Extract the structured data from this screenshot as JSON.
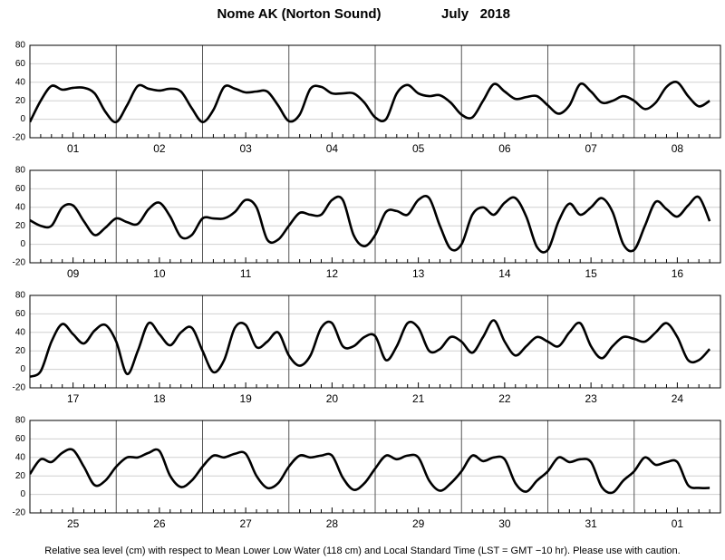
{
  "header": {
    "title": "Nome AK (Norton Sound)",
    "date": "July   2018"
  },
  "footer": "Relative sea level (cm) with respect to Mean Lower Low Water (118 cm) and Local Standard Time (LST = GMT −10 hr). Please use with caution.",
  "chart_data": [
    {
      "type": "line",
      "color": "#000000",
      "ylim": [
        -20,
        80
      ],
      "yticks": [
        -20,
        0,
        20,
        40,
        60,
        80
      ],
      "grid": true,
      "categories": [
        "01",
        "02",
        "03",
        "04",
        "05",
        "06",
        "07",
        "08"
      ],
      "values": [
        [
          -3,
          20,
          36,
          32,
          34,
          34,
          28,
          8
        ],
        [
          -3,
          15,
          36,
          33,
          31,
          33,
          30,
          12
        ],
        [
          -3,
          10,
          35,
          33,
          29,
          30,
          30,
          15
        ],
        [
          -2,
          5,
          33,
          35,
          28,
          28,
          28,
          18
        ],
        [
          2,
          0,
          28,
          37,
          28,
          25,
          26,
          18
        ],
        [
          5,
          2,
          20,
          38,
          30,
          22,
          24,
          25
        ],
        [
          15,
          6,
          15,
          38,
          30,
          18,
          20,
          25
        ],
        [
          20,
          11,
          18,
          35,
          40,
          25,
          14,
          20
        ]
      ]
    },
    {
      "type": "line",
      "color": "#000000",
      "ylim": [
        -20,
        80
      ],
      "yticks": [
        -20,
        0,
        20,
        40,
        60,
        80
      ],
      "grid": true,
      "categories": [
        "09",
        "10",
        "11",
        "12",
        "13",
        "14",
        "15",
        "16"
      ],
      "values": [
        [
          26,
          20,
          20,
          40,
          42,
          25,
          10,
          18
        ],
        [
          28,
          24,
          22,
          38,
          45,
          30,
          8,
          10
        ],
        [
          28,
          28,
          28,
          35,
          48,
          40,
          5,
          5
        ],
        [
          20,
          34,
          32,
          32,
          48,
          48,
          10,
          -2
        ],
        [
          10,
          35,
          36,
          32,
          48,
          50,
          20,
          -5
        ],
        [
          0,
          32,
          40,
          32,
          45,
          50,
          30,
          -3
        ],
        [
          -6,
          25,
          44,
          32,
          40,
          50,
          35,
          0
        ],
        [
          -6,
          20,
          46,
          38,
          30,
          42,
          51,
          25
        ]
      ]
    },
    {
      "type": "line",
      "color": "#000000",
      "ylim": [
        -20,
        80
      ],
      "yticks": [
        -20,
        0,
        20,
        40,
        60,
        80
      ],
      "grid": true,
      "categories": [
        "17",
        "18",
        "19",
        "20",
        "21",
        "22",
        "23",
        "24"
      ],
      "values": [
        [
          -8,
          -2,
          30,
          49,
          38,
          28,
          42,
          48
        ],
        [
          30,
          -5,
          20,
          50,
          38,
          26,
          40,
          45
        ],
        [
          20,
          -3,
          10,
          45,
          48,
          24,
          30,
          40
        ],
        [
          15,
          4,
          15,
          45,
          50,
          25,
          25,
          35
        ],
        [
          36,
          10,
          25,
          50,
          45,
          20,
          22,
          35
        ],
        [
          30,
          18,
          35,
          53,
          30,
          15,
          25,
          35
        ],
        [
          30,
          25,
          40,
          50,
          25,
          12,
          25,
          35
        ],
        [
          33,
          30,
          40,
          50,
          35,
          10,
          10,
          22
        ]
      ]
    },
    {
      "type": "line",
      "color": "#000000",
      "ylim": [
        -20,
        80
      ],
      "yticks": [
        -20,
        0,
        20,
        40,
        60,
        80
      ],
      "grid": true,
      "categories": [
        "25",
        "26",
        "27",
        "28",
        "29",
        "30",
        "31",
        "01"
      ],
      "values": [
        [
          22,
          38,
          35,
          45,
          48,
          30,
          10,
          15
        ],
        [
          30,
          40,
          40,
          45,
          47,
          20,
          8,
          15
        ],
        [
          30,
          42,
          40,
          44,
          44,
          20,
          7,
          12
        ],
        [
          30,
          42,
          40,
          42,
          42,
          18,
          5,
          12
        ],
        [
          28,
          42,
          38,
          42,
          40,
          15,
          4,
          12
        ],
        [
          25,
          42,
          36,
          40,
          38,
          12,
          3,
          15
        ],
        [
          25,
          40,
          35,
          38,
          35,
          8,
          2,
          15
        ],
        [
          25,
          40,
          32,
          35,
          35,
          10,
          7,
          7
        ]
      ]
    }
  ]
}
